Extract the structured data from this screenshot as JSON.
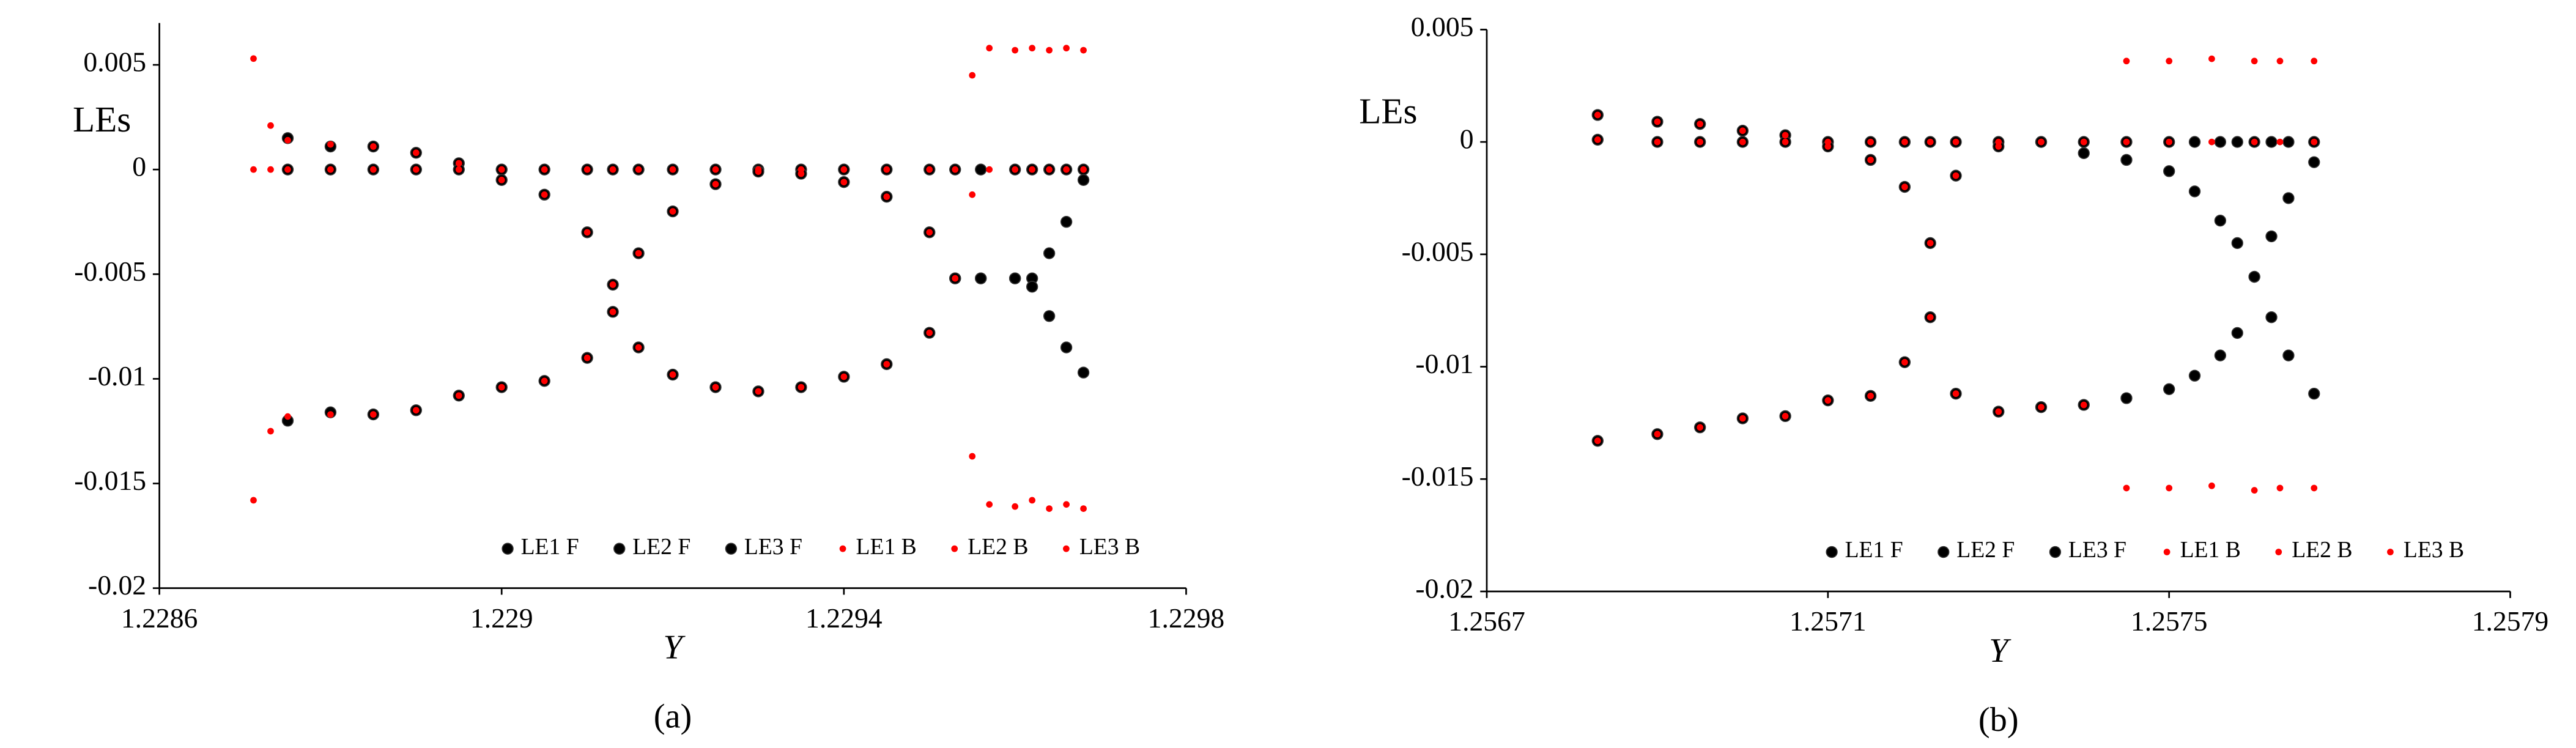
{
  "chart_data": [
    {
      "type": "scatter",
      "y_label": "LEs",
      "x_label": "Y",
      "caption": "(a)",
      "xlim": [
        1.2286,
        1.2298
      ],
      "xticks": [
        1.2286,
        1.229,
        1.2294,
        1.2298
      ],
      "ylim": [
        -0.02,
        0.007
      ],
      "yticks": [
        0.005,
        0,
        -0.005,
        -0.01,
        -0.015,
        -0.02
      ],
      "grid": false,
      "legend": "lower right",
      "series": [
        {
          "name": "LE1 F",
          "color": "#000000",
          "x": [
            1.22875,
            1.2288,
            1.22885,
            1.2289,
            1.22895,
            1.229,
            1.22905,
            1.2291,
            1.22913,
            1.22916,
            1.2292,
            1.22925,
            1.2293,
            1.22935,
            1.2294,
            1.22945,
            1.2295,
            1.22953,
            1.22956,
            1.2296,
            1.22962,
            1.22964,
            1.22966,
            1.22968
          ],
          "values": [
            0.0015,
            0.0011,
            0.0011,
            0.0008,
            0.0003,
            0,
            0,
            0,
            0,
            0,
            0,
            0,
            0,
            0,
            0,
            0,
            0,
            0,
            0,
            0,
            0,
            0,
            0,
            0
          ]
        },
        {
          "name": "LE2 F",
          "color": "#000000",
          "x": [
            1.22875,
            1.2288,
            1.22885,
            1.2289,
            1.22895,
            1.229,
            1.22905,
            1.2291,
            1.22913,
            1.22916,
            1.2292,
            1.22925,
            1.2293,
            1.22935,
            1.2294,
            1.22945,
            1.2295,
            1.22953,
            1.22956,
            1.2296,
            1.22962,
            1.22964,
            1.22966,
            1.22968
          ],
          "values": [
            0,
            0,
            0,
            0,
            0,
            -0.0005,
            -0.0012,
            -0.003,
            -0.0055,
            -0.004,
            -0.002,
            -0.0007,
            -0.0001,
            -0.0002,
            -0.0006,
            -0.0013,
            -0.003,
            -0.0052,
            -0.0052,
            -0.0052,
            -0.0052,
            -0.004,
            -0.0025,
            -0.0005
          ]
        },
        {
          "name": "LE3 F",
          "color": "#000000",
          "x": [
            1.22875,
            1.2288,
            1.22885,
            1.2289,
            1.22895,
            1.229,
            1.22905,
            1.2291,
            1.22913,
            1.22916,
            1.2292,
            1.22925,
            1.2293,
            1.22935,
            1.2294,
            1.22945,
            1.2295,
            1.22953,
            1.22956,
            1.2296,
            1.22962,
            1.22964,
            1.22966,
            1.22968
          ],
          "values": [
            -0.012,
            -0.0116,
            -0.0117,
            -0.0115,
            -0.0108,
            -0.0104,
            -0.0101,
            -0.009,
            -0.0068,
            -0.0085,
            -0.0098,
            -0.0104,
            -0.0106,
            -0.0104,
            -0.0099,
            -0.0093,
            -0.0078,
            -0.0052,
            -0.0052,
            -0.0052,
            -0.0056,
            -0.007,
            -0.0085,
            -0.0097
          ]
        },
        {
          "name": "LE1 B",
          "color": "#ff0000",
          "x": [
            1.22871,
            1.22873,
            1.22875,
            1.2288,
            1.22885,
            1.2289,
            1.22895,
            1.229,
            1.22905,
            1.2291,
            1.22913,
            1.22916,
            1.2292,
            1.22925,
            1.2293,
            1.22935,
            1.2294,
            1.22945,
            1.2295,
            1.22953,
            1.22955,
            1.22957,
            1.2296,
            1.22962,
            1.22964,
            1.22966,
            1.22968
          ],
          "values": [
            0.0053,
            0.0021,
            0.0014,
            0.0012,
            0.0011,
            0.0008,
            0.0003,
            0,
            0,
            0,
            0,
            0,
            0,
            0,
            0,
            0,
            0,
            0,
            0,
            0,
            0.0045,
            0.0058,
            0.0057,
            0.0058,
            0.0057,
            0.0058,
            0.0057
          ]
        },
        {
          "name": "LE2 B",
          "color": "#ff0000",
          "x": [
            1.22871,
            1.22873,
            1.22875,
            1.2288,
            1.22885,
            1.2289,
            1.22895,
            1.229,
            1.22905,
            1.2291,
            1.22913,
            1.22916,
            1.2292,
            1.22925,
            1.2293,
            1.22935,
            1.2294,
            1.22945,
            1.2295,
            1.22953,
            1.22955,
            1.22957,
            1.2296,
            1.22962,
            1.22964,
            1.22966,
            1.22968
          ],
          "values": [
            0,
            0,
            0,
            0,
            0,
            0,
            0,
            -0.0005,
            -0.0012,
            -0.003,
            -0.0055,
            -0.004,
            -0.002,
            -0.0007,
            -0.0001,
            -0.0002,
            -0.0006,
            -0.0013,
            -0.003,
            -0.0052,
            -0.0012,
            0,
            0,
            0,
            0,
            0,
            0
          ]
        },
        {
          "name": "LE3 B",
          "color": "#ff0000",
          "x": [
            1.22871,
            1.22873,
            1.22875,
            1.2288,
            1.22885,
            1.2289,
            1.22895,
            1.229,
            1.22905,
            1.2291,
            1.22913,
            1.22916,
            1.2292,
            1.22925,
            1.2293,
            1.22935,
            1.2294,
            1.22945,
            1.2295,
            1.22953,
            1.22955,
            1.22957,
            1.2296,
            1.22962,
            1.22964,
            1.22966,
            1.22968
          ],
          "values": [
            -0.0158,
            -0.0125,
            -0.0118,
            -0.0117,
            -0.0117,
            -0.0115,
            -0.0108,
            -0.0104,
            -0.0101,
            -0.009,
            -0.0068,
            -0.0085,
            -0.0098,
            -0.0104,
            -0.0106,
            -0.0104,
            -0.0099,
            -0.0093,
            -0.0078,
            -0.0052,
            -0.0137,
            -0.016,
            -0.0161,
            -0.0158,
            -0.0162,
            -0.016,
            -0.0162
          ]
        }
      ]
    },
    {
      "type": "scatter",
      "y_label": "LEs",
      "x_label": "Y",
      "caption": "(b)",
      "xlim": [
        1.2567,
        1.2579
      ],
      "xticks": [
        1.2567,
        1.2571,
        1.2575,
        1.2579
      ],
      "ylim": [
        -0.02,
        0.005
      ],
      "yticks": [
        0.005,
        0,
        -0.005,
        -0.01,
        -0.015,
        -0.02
      ],
      "grid": false,
      "legend": "lower right",
      "series": [
        {
          "name": "LE1 F",
          "color": "#000000",
          "x": [
            1.25683,
            1.2569,
            1.25695,
            1.257,
            1.25705,
            1.2571,
            1.25715,
            1.25719,
            1.25722,
            1.25725,
            1.2573,
            1.25735,
            1.2574,
            1.25745,
            1.2575,
            1.25753,
            1.25756,
            1.25758,
            1.2576,
            1.25762,
            1.25764,
            1.25767
          ],
          "values": [
            0.0012,
            0.0009,
            0.0008,
            0.0005,
            0.0003,
            0,
            0,
            0,
            0,
            0,
            0,
            0,
            0,
            0,
            0,
            0,
            0,
            0,
            0,
            0,
            0,
            0
          ]
        },
        {
          "name": "LE2 F",
          "color": "#000000",
          "x": [
            1.25683,
            1.2569,
            1.25695,
            1.257,
            1.25705,
            1.2571,
            1.25715,
            1.25719,
            1.25722,
            1.25725,
            1.2573,
            1.25735,
            1.2574,
            1.25745,
            1.2575,
            1.25753,
            1.25756,
            1.25758,
            1.2576,
            1.25762,
            1.25764,
            1.25767
          ],
          "values": [
            0.0001,
            0,
            0,
            0,
            0,
            -0.0002,
            -0.0008,
            -0.002,
            -0.0045,
            -0.0015,
            -0.0002,
            0,
            -0.0005,
            -0.0008,
            -0.0013,
            -0.0022,
            -0.0035,
            -0.0045,
            -0.006,
            -0.0078,
            -0.0095,
            -0.0112
          ]
        },
        {
          "name": "LE3 F",
          "color": "#000000",
          "x": [
            1.25683,
            1.2569,
            1.25695,
            1.257,
            1.25705,
            1.2571,
            1.25715,
            1.25719,
            1.25722,
            1.25725,
            1.2573,
            1.25735,
            1.2574,
            1.25745,
            1.2575,
            1.25753,
            1.25756,
            1.25758,
            1.2576,
            1.25762,
            1.25764,
            1.25767
          ],
          "values": [
            -0.0133,
            -0.013,
            -0.0127,
            -0.0123,
            -0.0122,
            -0.0115,
            -0.0113,
            -0.0098,
            -0.0078,
            -0.0112,
            -0.012,
            -0.0118,
            -0.0117,
            -0.0114,
            -0.011,
            -0.0104,
            -0.0095,
            -0.0085,
            -0.006,
            -0.0042,
            -0.0025,
            -0.0009
          ]
        },
        {
          "name": "LE1 B",
          "color": "#ff0000",
          "x": [
            1.25683,
            1.2569,
            1.25695,
            1.257,
            1.25705,
            1.2571,
            1.25715,
            1.25719,
            1.25722,
            1.25725,
            1.2573,
            1.25735,
            1.2574,
            1.25745,
            1.2575,
            1.25755,
            1.2576,
            1.25763,
            1.25767
          ],
          "values": [
            0.0012,
            0.0009,
            0.0008,
            0.0005,
            0.0003,
            0,
            0,
            0,
            0,
            0,
            0,
            0,
            0,
            0.0036,
            0.0036,
            0.0037,
            0.0036,
            0.0036,
            0.0036
          ]
        },
        {
          "name": "LE2 B",
          "color": "#ff0000",
          "x": [
            1.25683,
            1.2569,
            1.25695,
            1.257,
            1.25705,
            1.2571,
            1.25715,
            1.25719,
            1.25722,
            1.25725,
            1.2573,
            1.25735,
            1.2574,
            1.25745,
            1.2575,
            1.25755,
            1.2576,
            1.25763,
            1.25767
          ],
          "values": [
            0.0001,
            0,
            0,
            0,
            0,
            -0.0002,
            -0.0008,
            -0.002,
            -0.0045,
            -0.0015,
            -0.0002,
            0,
            0,
            0,
            0,
            0,
            0,
            0,
            0
          ]
        },
        {
          "name": "LE3 B",
          "color": "#ff0000",
          "x": [
            1.25683,
            1.2569,
            1.25695,
            1.257,
            1.25705,
            1.2571,
            1.25715,
            1.25719,
            1.25722,
            1.25725,
            1.2573,
            1.25735,
            1.2574,
            1.25745,
            1.2575,
            1.25755,
            1.2576,
            1.25763,
            1.25767
          ],
          "values": [
            -0.0133,
            -0.013,
            -0.0127,
            -0.0123,
            -0.0122,
            -0.0115,
            -0.0113,
            -0.0098,
            -0.0078,
            -0.0112,
            -0.012,
            -0.0118,
            -0.0117,
            -0.0154,
            -0.0154,
            -0.0153,
            -0.0155,
            -0.0154,
            -0.0154
          ]
        }
      ]
    }
  ]
}
